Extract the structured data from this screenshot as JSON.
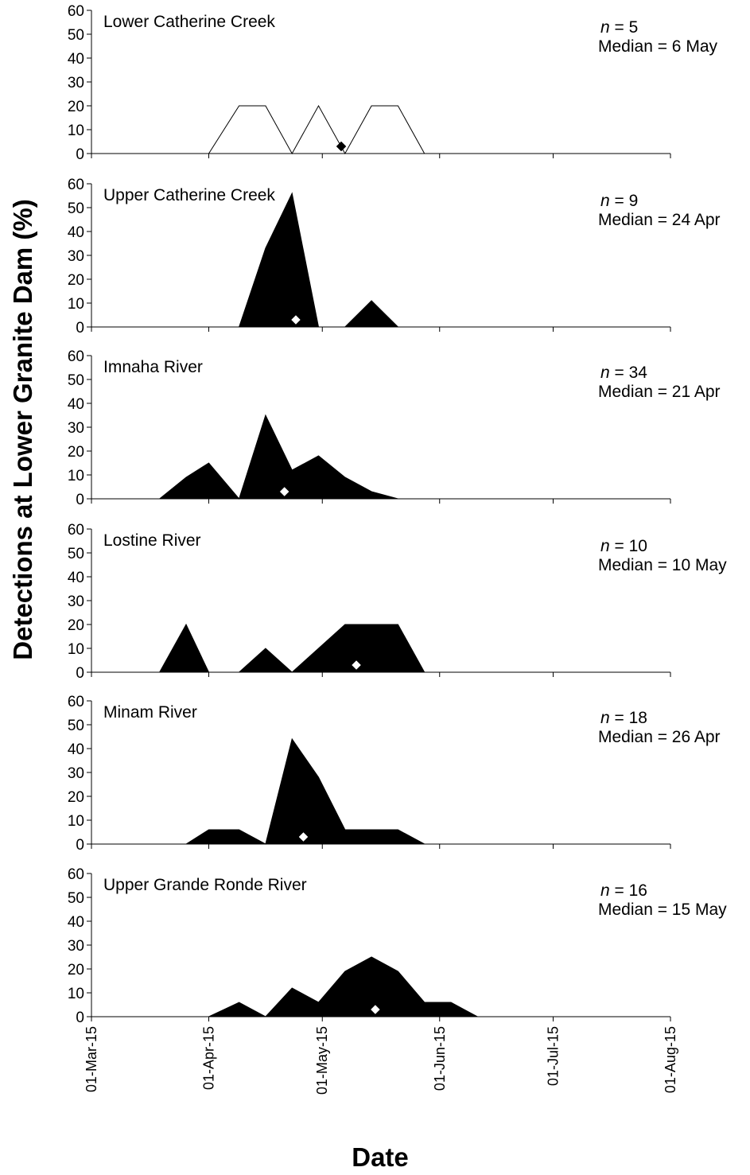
{
  "chart_data": {
    "type": "area",
    "ylabel": "Detections at Lower Granite Dam (%)",
    "xlabel": "Date",
    "x_tick_labels": [
      "01-Mar-15",
      "01-Apr-15",
      "01-May-15",
      "01-Jun-15",
      "01-Jul-15",
      "01-Aug-15"
    ],
    "x_tick_dates": [
      "2015-03-01",
      "2015-04-01",
      "2015-05-01",
      "2015-06-01",
      "2015-07-01",
      "2015-08-01"
    ],
    "xlim": [
      "2015-03-01",
      "2015-08-01"
    ],
    "ylim": [
      0,
      60
    ],
    "y_ticks": [
      0,
      10,
      20,
      30,
      40,
      50,
      60
    ],
    "grid": false,
    "panels": [
      {
        "title": "Lower Catherine Creek",
        "n_label": "n",
        "n_value": " = 5",
        "median_label": "Median = 6 May",
        "fill": "#ffffff",
        "median_marker": {
          "x": "2015-05-06",
          "y": 3,
          "color": "#000000"
        },
        "series": {
          "x": [
            "2015-03-19",
            "2015-04-01",
            "2015-04-09",
            "2015-04-16",
            "2015-04-23",
            "2015-04-30",
            "2015-05-07",
            "2015-05-14",
            "2015-05-21",
            "2015-05-28",
            "2015-06-04",
            "2015-06-11",
            "2015-06-18",
            "2015-06-25",
            "2015-07-02",
            "2015-07-09",
            "2015-07-16"
          ],
          "y": [
            0,
            0,
            20,
            20,
            0,
            20,
            0,
            20,
            20,
            0,
            0,
            0,
            0,
            0,
            0,
            0,
            0
          ]
        }
      },
      {
        "title": "Upper Catherine Creek",
        "n_label": "n",
        "n_value": " = 9",
        "median_label": "Median = 24 Apr",
        "fill": "#000000",
        "median_marker": {
          "x": "2015-04-24",
          "y": 3,
          "color": "#ffffff"
        },
        "series": {
          "x": [
            "2015-03-19",
            "2015-04-01",
            "2015-04-09",
            "2015-04-16",
            "2015-04-23",
            "2015-04-30",
            "2015-05-07",
            "2015-05-14",
            "2015-05-21",
            "2015-05-28",
            "2015-06-04",
            "2015-06-11",
            "2015-06-18",
            "2015-06-25",
            "2015-07-02",
            "2015-07-09",
            "2015-07-16"
          ],
          "y": [
            0,
            0,
            0,
            33,
            56,
            0,
            0,
            11,
            0,
            0,
            0,
            0,
            0,
            0,
            0,
            0,
            0
          ]
        }
      },
      {
        "title": "Imnaha River",
        "n_label": "n",
        "n_value": " = 34",
        "median_label": "Median = 21 Apr",
        "fill": "#000000",
        "median_marker": {
          "x": "2015-04-21",
          "y": 3,
          "color": "#ffffff"
        },
        "series": {
          "x": [
            "2015-03-19",
            "2015-03-26",
            "2015-04-01",
            "2015-04-09",
            "2015-04-16",
            "2015-04-23",
            "2015-04-30",
            "2015-05-07",
            "2015-05-14",
            "2015-05-21",
            "2015-05-28",
            "2015-06-04",
            "2015-06-11",
            "2015-06-18",
            "2015-06-25",
            "2015-07-02",
            "2015-07-09",
            "2015-07-16"
          ],
          "y": [
            0,
            9,
            15,
            0,
            35,
            12,
            18,
            9,
            3,
            0,
            0,
            0,
            0,
            0,
            0,
            0,
            0,
            0
          ]
        }
      },
      {
        "title": "Lostine River",
        "n_label": "n",
        "n_value": " = 10",
        "median_label": "Median = 10 May",
        "fill": "#000000",
        "median_marker": {
          "x": "2015-05-10",
          "y": 3,
          "color": "#ffffff"
        },
        "series": {
          "x": [
            "2015-03-19",
            "2015-03-26",
            "2015-04-01",
            "2015-04-09",
            "2015-04-16",
            "2015-04-23",
            "2015-04-30",
            "2015-05-07",
            "2015-05-14",
            "2015-05-21",
            "2015-05-28",
            "2015-06-04",
            "2015-06-11",
            "2015-06-18",
            "2015-06-25",
            "2015-07-02",
            "2015-07-09",
            "2015-07-16"
          ],
          "y": [
            0,
            20,
            0,
            0,
            10,
            0,
            10,
            20,
            20,
            20,
            0,
            0,
            0,
            0,
            0,
            0,
            0,
            0
          ]
        }
      },
      {
        "title": "Minam River",
        "n_label": "n",
        "n_value": " = 18",
        "median_label": "Median = 26 Apr",
        "fill": "#000000",
        "median_marker": {
          "x": "2015-04-26",
          "y": 3,
          "color": "#ffffff"
        },
        "series": {
          "x": [
            "2015-03-19",
            "2015-03-26",
            "2015-04-01",
            "2015-04-09",
            "2015-04-16",
            "2015-04-23",
            "2015-04-30",
            "2015-05-07",
            "2015-05-14",
            "2015-05-21",
            "2015-05-28",
            "2015-06-04",
            "2015-06-11",
            "2015-06-18",
            "2015-06-25",
            "2015-07-02",
            "2015-07-09",
            "2015-07-16"
          ],
          "y": [
            0,
            0,
            6,
            6,
            0,
            44,
            28,
            6,
            6,
            6,
            0,
            0,
            0,
            0,
            0,
            0,
            0,
            0
          ]
        }
      },
      {
        "title": "Upper Grande Ronde River",
        "n_label": "n",
        "n_value": " = 16",
        "median_label": "Median = 15 May",
        "fill": "#000000",
        "median_marker": {
          "x": "2015-05-15",
          "y": 3,
          "color": "#ffffff"
        },
        "series": {
          "x": [
            "2015-03-19",
            "2015-04-01",
            "2015-04-09",
            "2015-04-16",
            "2015-04-23",
            "2015-04-30",
            "2015-05-07",
            "2015-05-14",
            "2015-05-21",
            "2015-05-28",
            "2015-06-04",
            "2015-06-11",
            "2015-06-18",
            "2015-06-25",
            "2015-07-02",
            "2015-07-09",
            "2015-07-16"
          ],
          "y": [
            0,
            0,
            6,
            0,
            12,
            6,
            19,
            25,
            19,
            6,
            6,
            0,
            0,
            0,
            0,
            0,
            0
          ]
        }
      }
    ]
  }
}
